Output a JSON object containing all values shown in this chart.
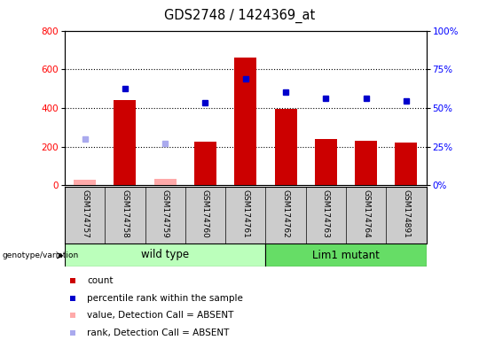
{
  "title": "GDS2748 / 1424369_at",
  "samples": [
    "GSM174757",
    "GSM174758",
    "GSM174759",
    "GSM174760",
    "GSM174761",
    "GSM174762",
    "GSM174763",
    "GSM174764",
    "GSM174891"
  ],
  "bar_values": [
    null,
    440,
    null,
    225,
    660,
    397,
    238,
    232,
    222
  ],
  "bar_absent_values": [
    30,
    null,
    35,
    null,
    null,
    null,
    null,
    null,
    null
  ],
  "rank_values": [
    null,
    500,
    null,
    425,
    550,
    480,
    448,
    450,
    435
  ],
  "rank_absent_values": [
    240,
    null,
    215,
    null,
    null,
    null,
    null,
    null,
    null
  ],
  "wild_type_indices": [
    0,
    1,
    2,
    3,
    4
  ],
  "lim1_mutant_indices": [
    5,
    6,
    7,
    8
  ],
  "ylim_left": [
    0,
    800
  ],
  "ylim_right": [
    0,
    100
  ],
  "yticks_left": [
    0,
    200,
    400,
    600,
    800
  ],
  "ytick_labels_right": [
    "0%",
    "25%",
    "50%",
    "75%",
    "100%"
  ],
  "bar_color": "#cc0000",
  "bar_absent_color": "#ffaaaa",
  "rank_color": "#0000cc",
  "rank_absent_color": "#aaaaee",
  "wild_type_color": "#bbffbb",
  "lim1_mutant_color": "#66dd66",
  "tick_area_color": "#cccccc",
  "legend_items": [
    [
      "#cc0000",
      "count"
    ],
    [
      "#0000cc",
      "percentile rank within the sample"
    ],
    [
      "#ffaaaa",
      "value, Detection Call = ABSENT"
    ],
    [
      "#aaaaee",
      "rank, Detection Call = ABSENT"
    ]
  ]
}
